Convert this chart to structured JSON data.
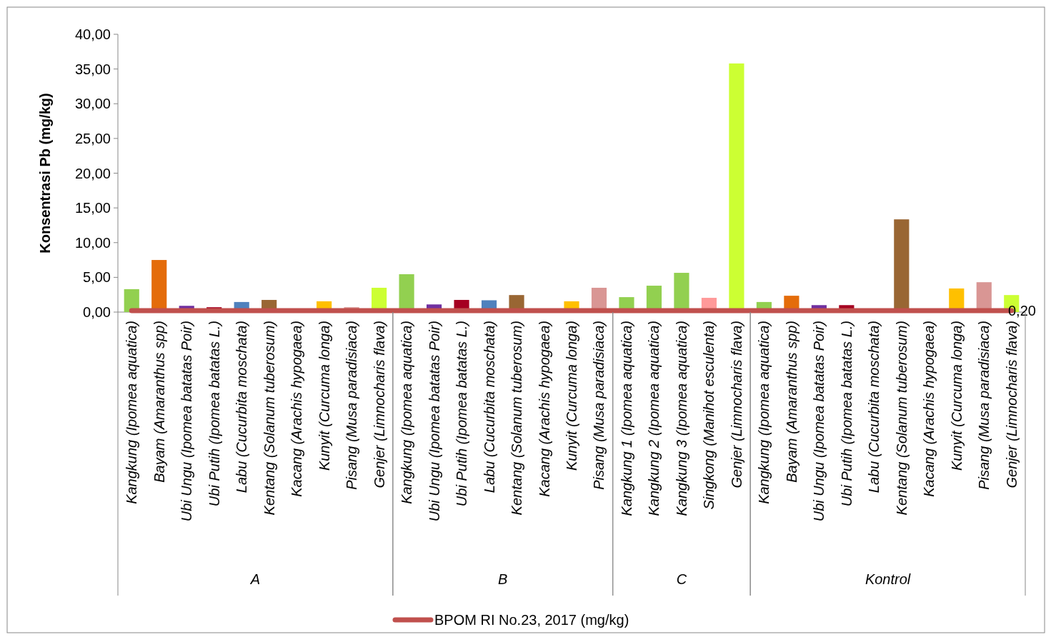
{
  "chart_data": {
    "type": "bar",
    "ylabel": "Konsentrasi Pb (mg/kg)",
    "categories": [
      "Kangkung (Ipomea aquatica)",
      "Bayam (Amaranthus spp)",
      "Ubi Ungu (Ipomea batatas Poir)",
      "Ubi Putih (Ipomea batatas L.)",
      "Labu (Cucurbita moschata)",
      "Kentang (Solanum tuberosum)",
      "Kacang (Arachis hypogaea)",
      "Kunyit (Curcuma longa)",
      "Pisang (Musa paradisiaca)",
      "Genjer (Limnocharis flava)",
      "Kangkung (Ipomea aquatica)",
      "Ubi Ungu (Ipomea batatas Poir)",
      "Ubi Putih (Ipomea batatas L.)",
      "Labu (Cucurbita moschata)",
      "Kentang (Solanum tuberosum)",
      "Kacang (Arachis hypogaea)",
      "Kunyit (Curcuma longa)",
      "Pisang (Musa paradisiaca)",
      "Kangkung 1 (Ipomea aquatica)",
      "Kangkung 2 (Ipomea aquatica)",
      "Kangkung 3 (Ipomea aquatica)",
      "Singkong (Manihot esculenta)",
      "Genjer (Limnocharis flava)",
      "Kangkung (Ipomea aquatica)",
      "Bayam (Amaranthus spp)",
      "Ubi Ungu (Ipomea batatas Poir)",
      "Ubi Putih (Ipomea batatas L.)",
      "Labu (Cucurbita moschata)",
      "Kentang (Solanum tuberosum)",
      "Kacang (Arachis hypogaea)",
      "Kunyit (Curcuma longa)",
      "Pisang (Musa paradisiaca)",
      "Genjer (Limnocharis flava)"
    ],
    "series": [
      {
        "values": [
          3.3,
          7.5,
          0.9,
          0.7,
          1.45,
          1.75,
          0,
          1.55,
          0.7,
          3.5,
          5.45,
          1.1,
          1.75,
          1.7,
          2.45,
          0,
          1.55,
          3.5,
          2.15,
          3.8,
          5.65,
          2.05,
          35.8,
          1.45,
          2.35,
          1.0,
          1.0,
          0,
          13.35,
          0,
          3.4,
          4.3,
          2.45
        ],
        "colors": [
          "#92d050",
          "#e46c0a",
          "#7030a0",
          "#a50021",
          "#4f81bd",
          "#996633",
          "#77933c",
          "#ffc000",
          "#d99694",
          "#ccff33",
          "#92d050",
          "#7030a0",
          "#a50021",
          "#4f81bd",
          "#996633",
          "#77933c",
          "#ffc000",
          "#d99694",
          "#92d050",
          "#92d050",
          "#92d050",
          "#ff9999",
          "#ccff33",
          "#92d050",
          "#e46c0a",
          "#7030a0",
          "#a50021",
          "#4f81bd",
          "#996633",
          "#77933c",
          "#ffc000",
          "#d99694",
          "#ccff33"
        ]
      },
      {
        "type": "line",
        "name": "BPOM RI No.23, 2017 (mg/kg)",
        "color": "#c0504d",
        "values": [
          0.2,
          0.2,
          0.2,
          0.2,
          0.2,
          0.2,
          0.2,
          0.2,
          0.2,
          0.2,
          0.2,
          0.2,
          0.2,
          0.2,
          0.2,
          0.2,
          0.2,
          0.2,
          0.2,
          0.2,
          0.2,
          0.2,
          0.2,
          0.2,
          0.2,
          0.2,
          0.2,
          0.2,
          0.2,
          0.2,
          0.2,
          0.2,
          0.2
        ],
        "value_labels": [
          null,
          null,
          null,
          null,
          null,
          null,
          null,
          null,
          null,
          null,
          null,
          null,
          null,
          null,
          null,
          null,
          null,
          null,
          null,
          null,
          null,
          null,
          null,
          null,
          null,
          null,
          null,
          null,
          null,
          null,
          null,
          null,
          "0,20"
        ]
      }
    ],
    "ylim": [
      0,
      40
    ],
    "yticks": [
      {
        "value": 0,
        "label": "0,00"
      },
      {
        "value": 5,
        "label": "5,00"
      },
      {
        "value": 10,
        "label": "10,00"
      },
      {
        "value": 15,
        "label": "15,00"
      },
      {
        "value": 20,
        "label": "20,00"
      },
      {
        "value": 25,
        "label": "25,00"
      },
      {
        "value": 30,
        "label": "30,00"
      },
      {
        "value": 35,
        "label": "35,00"
      },
      {
        "value": 40,
        "label": "40,00"
      }
    ],
    "annotations": [
      "A",
      "B",
      "C",
      "Kontrol"
    ],
    "legend": "bottom",
    "grid": false
  }
}
